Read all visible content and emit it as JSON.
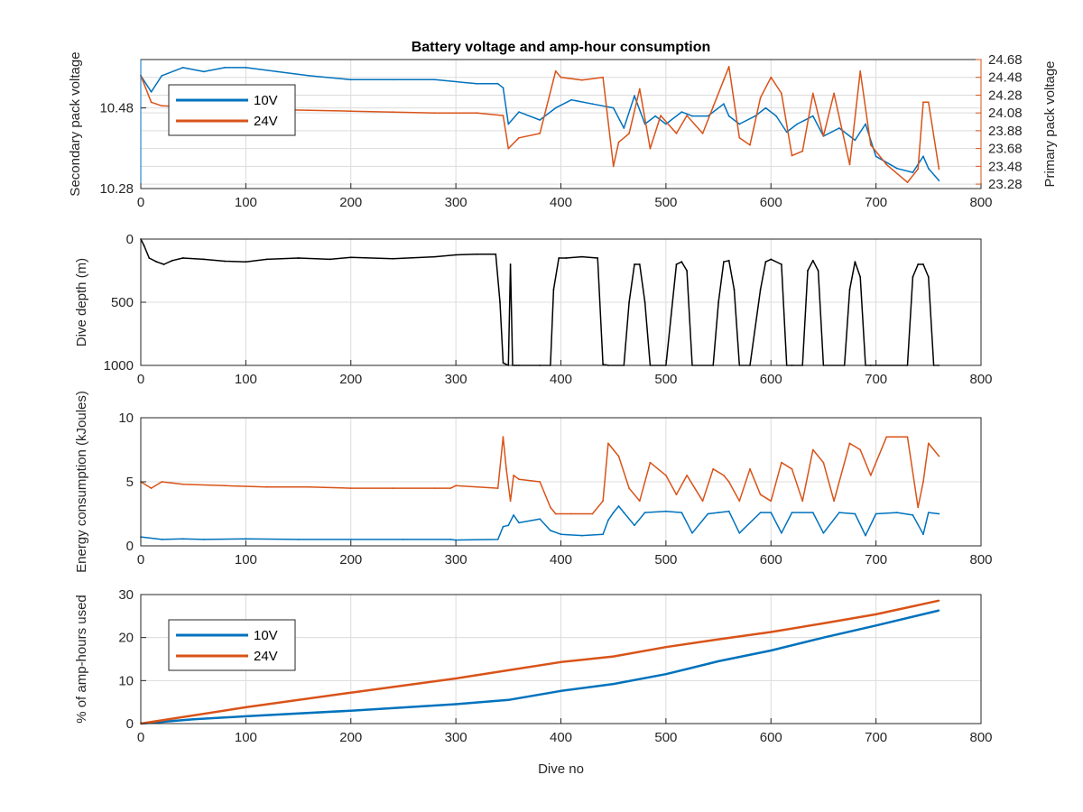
{
  "colors": {
    "series_10v": "#0072BD",
    "series_24v": "#D95319",
    "depth": "#000000",
    "grid": "#dcdcdc",
    "axis": "#262626"
  },
  "chart_data": [
    {
      "type": "line",
      "title": "Battery voltage and amp-hour consumption",
      "xlabel": "",
      "xlim": [
        0,
        800
      ],
      "xticks": [
        0,
        100,
        200,
        300,
        400,
        500,
        600,
        700,
        800
      ],
      "ylabel": "Secondary pack voltage",
      "ylim": [
        10.28,
        10.6
      ],
      "yticks": [
        10.28,
        10.48
      ],
      "ylabel_right": "Primary pack voltage",
      "ylim_right": [
        23.23,
        24.68
      ],
      "yticks_right": [
        23.28,
        23.48,
        23.68,
        23.88,
        24.08,
        24.28,
        24.48,
        24.68
      ],
      "grid": true,
      "legend": {
        "placement": "top-left",
        "entries": [
          "10V",
          "24V"
        ]
      },
      "series": [
        {
          "name": "10V",
          "axis": "left",
          "x": [
            0,
            10,
            20,
            40,
            60,
            80,
            100,
            130,
            160,
            200,
            240,
            280,
            320,
            340,
            345,
            350,
            360,
            380,
            395,
            410,
            430,
            450,
            460,
            470,
            480,
            490,
            500,
            515,
            525,
            540,
            555,
            560,
            570,
            585,
            595,
            605,
            615,
            625,
            640,
            650,
            665,
            680,
            690,
            700,
            720,
            735,
            745,
            750,
            760
          ],
          "values": [
            10.56,
            10.52,
            10.56,
            10.58,
            10.57,
            10.58,
            10.58,
            10.57,
            10.56,
            10.55,
            10.55,
            10.55,
            10.54,
            10.54,
            10.53,
            10.44,
            10.47,
            10.45,
            10.48,
            10.5,
            10.49,
            10.48,
            10.43,
            10.51,
            10.44,
            10.46,
            10.44,
            10.47,
            10.46,
            10.46,
            10.49,
            10.46,
            10.44,
            10.46,
            10.48,
            10.46,
            10.42,
            10.44,
            10.46,
            10.41,
            10.43,
            10.4,
            10.44,
            10.36,
            10.33,
            10.32,
            10.36,
            10.33,
            10.3
          ]
        },
        {
          "name": "24V",
          "axis": "right",
          "x": [
            0,
            10,
            20,
            40,
            80,
            120,
            160,
            200,
            240,
            280,
            320,
            345,
            350,
            360,
            380,
            395,
            400,
            420,
            440,
            450,
            455,
            465,
            475,
            485,
            495,
            510,
            520,
            535,
            545,
            555,
            560,
            570,
            580,
            590,
            600,
            610,
            620,
            630,
            640,
            650,
            660,
            675,
            685,
            695,
            710,
            730,
            740,
            745,
            750,
            760
          ],
          "values": [
            24.5,
            24.2,
            24.16,
            24.15,
            24.13,
            24.12,
            24.11,
            24.1,
            24.09,
            24.08,
            24.08,
            24.05,
            23.68,
            23.8,
            23.85,
            24.55,
            24.48,
            24.45,
            24.48,
            23.48,
            23.75,
            23.85,
            24.35,
            23.68,
            24.05,
            23.85,
            24.05,
            23.85,
            24.15,
            24.45,
            24.6,
            23.8,
            23.72,
            24.25,
            24.48,
            24.3,
            23.6,
            23.65,
            24.3,
            23.82,
            24.3,
            23.5,
            24.55,
            23.72,
            23.5,
            23.3,
            23.45,
            24.2,
            24.2,
            23.45
          ]
        }
      ]
    },
    {
      "type": "line",
      "title": "",
      "xlabel": "",
      "xlim": [
        0,
        800
      ],
      "xticks": [
        0,
        100,
        200,
        300,
        400,
        500,
        600,
        700,
        800
      ],
      "ylabel": "Dive depth (m)",
      "ylim": [
        0,
        1000
      ],
      "y_reversed": true,
      "yticks": [
        0,
        500,
        1000
      ],
      "ytick_labels": [
        "0",
        "500",
        "1000"
      ],
      "grid": true,
      "series": [
        {
          "x": [
            0,
            3,
            8,
            15,
            22,
            30,
            40,
            60,
            80,
            100,
            120,
            150,
            180,
            200,
            240,
            280,
            300,
            320,
            338,
            342,
            345,
            350,
            352,
            354,
            356,
            358,
            360,
            380,
            390,
            393,
            398,
            405,
            420,
            435,
            440,
            445,
            460,
            465,
            470,
            475,
            480,
            485,
            500,
            505,
            510,
            515,
            520,
            525,
            545,
            550,
            555,
            560,
            565,
            570,
            580,
            590,
            595,
            600,
            610,
            615,
            620,
            630,
            635,
            640,
            645,
            650,
            670,
            675,
            680,
            685,
            690,
            695,
            730,
            735,
            740,
            745,
            750,
            755,
            760
          ],
          "values": [
            0,
            50,
            150,
            180,
            200,
            170,
            150,
            160,
            175,
            180,
            160,
            150,
            160,
            145,
            155,
            140,
            125,
            120,
            120,
            500,
            980,
            1000,
            200,
            1000,
            1000,
            1000,
            1000,
            1000,
            1000,
            400,
            150,
            150,
            140,
            150,
            990,
            1000,
            1000,
            500,
            200,
            200,
            500,
            1000,
            1000,
            600,
            200,
            180,
            250,
            1000,
            1000,
            500,
            180,
            170,
            400,
            1000,
            1000,
            400,
            180,
            160,
            200,
            1000,
            1000,
            1000,
            250,
            170,
            250,
            1000,
            1000,
            400,
            180,
            300,
            1000,
            1000,
            1000,
            300,
            200,
            200,
            300,
            1000,
            1000
          ]
        }
      ]
    },
    {
      "type": "line",
      "title": "",
      "xlabel": "",
      "xlim": [
        0,
        800
      ],
      "xticks": [
        0,
        100,
        200,
        300,
        400,
        500,
        600,
        700,
        800
      ],
      "ylabel": "Energy consumption (kJoules)",
      "ylim": [
        0,
        10
      ],
      "yticks": [
        0,
        5,
        10
      ],
      "grid": true,
      "series": [
        {
          "name": "10V",
          "x": [
            0,
            20,
            40,
            60,
            100,
            150,
            200,
            250,
            295,
            300,
            340,
            345,
            350,
            355,
            360,
            380,
            390,
            400,
            420,
            440,
            445,
            450,
            455,
            460,
            470,
            480,
            500,
            515,
            525,
            540,
            550,
            560,
            570,
            590,
            600,
            610,
            620,
            640,
            650,
            665,
            680,
            690,
            700,
            720,
            735,
            745,
            750,
            760
          ],
          "values": [
            0.7,
            0.5,
            0.55,
            0.5,
            0.55,
            0.5,
            0.5,
            0.5,
            0.5,
            0.45,
            0.5,
            1.5,
            1.6,
            2.4,
            1.8,
            2.1,
            1.2,
            0.9,
            0.8,
            0.9,
            2.0,
            2.6,
            3.1,
            2.6,
            1.6,
            2.6,
            2.7,
            2.6,
            1.0,
            2.5,
            2.6,
            2.7,
            1.0,
            2.6,
            2.6,
            1.0,
            2.6,
            2.6,
            1.0,
            2.6,
            2.5,
            0.8,
            2.5,
            2.6,
            2.4,
            0.9,
            2.6,
            2.5
          ]
        },
        {
          "name": "24V",
          "x": [
            0,
            10,
            20,
            40,
            80,
            120,
            160,
            200,
            240,
            280,
            295,
            300,
            340,
            345,
            348,
            352,
            355,
            360,
            380,
            390,
            395,
            410,
            430,
            440,
            445,
            450,
            455,
            465,
            475,
            485,
            500,
            510,
            520,
            535,
            545,
            555,
            560,
            570,
            580,
            590,
            600,
            610,
            620,
            630,
            640,
            650,
            660,
            675,
            685,
            695,
            710,
            730,
            740,
            745,
            750,
            760
          ],
          "values": [
            5.0,
            4.5,
            5.0,
            4.8,
            4.7,
            4.6,
            4.6,
            4.5,
            4.5,
            4.5,
            4.5,
            4.7,
            4.5,
            8.5,
            6.0,
            3.5,
            5.5,
            5.2,
            5.0,
            3.0,
            2.5,
            2.5,
            2.5,
            3.5,
            8.0,
            7.5,
            7.0,
            4.5,
            3.5,
            6.5,
            5.5,
            4.0,
            5.5,
            3.5,
            6.0,
            5.5,
            5.0,
            3.5,
            6.0,
            4.0,
            3.5,
            6.5,
            6.0,
            3.5,
            7.5,
            6.5,
            3.5,
            8.0,
            7.5,
            5.5,
            8.5,
            8.5,
            3.0,
            5.0,
            8.0,
            7.0
          ]
        }
      ]
    },
    {
      "type": "line",
      "title": "",
      "xlabel": "Dive no",
      "xlim": [
        0,
        800
      ],
      "xticks": [
        0,
        100,
        200,
        300,
        400,
        500,
        600,
        700,
        800
      ],
      "ylabel": "% of amp-hours used",
      "ylim": [
        0,
        30
      ],
      "yticks": [
        0,
        10,
        20,
        30
      ],
      "grid": true,
      "legend": {
        "placement": "top-left",
        "entries": [
          "10V",
          "24V"
        ]
      },
      "series": [
        {
          "name": "10V",
          "x": [
            0,
            50,
            100,
            200,
            300,
            350,
            400,
            450,
            500,
            550,
            600,
            650,
            700,
            760
          ],
          "values": [
            0,
            1.0,
            1.7,
            3.0,
            4.5,
            5.5,
            7.6,
            9.2,
            11.5,
            14.5,
            17.0,
            20.0,
            22.8,
            26.3
          ]
        },
        {
          "name": "24V",
          "x": [
            0,
            100,
            200,
            300,
            350,
            400,
            450,
            500,
            550,
            600,
            650,
            700,
            760
          ],
          "values": [
            0,
            3.8,
            7.2,
            10.5,
            12.4,
            14.3,
            15.6,
            17.8,
            19.6,
            21.3,
            23.3,
            25.4,
            28.6
          ]
        }
      ]
    }
  ]
}
